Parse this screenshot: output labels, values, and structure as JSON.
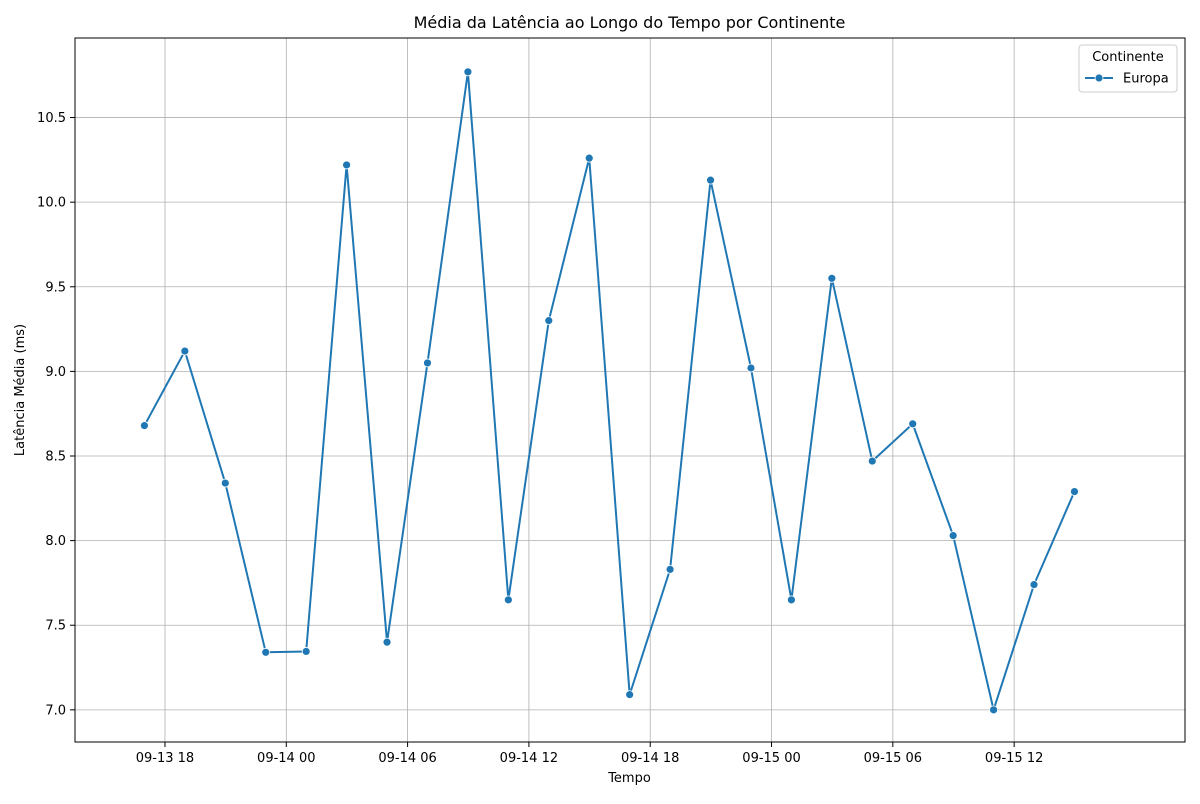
{
  "chart_data": {
    "type": "line",
    "title": "Média da Latência ao Longo do Tempo por Continente",
    "xlabel": "Tempo",
    "ylabel": "Latência Média (ms)",
    "grid": true,
    "legend": {
      "title": "Continente",
      "placement": "top-right"
    },
    "xlim": [
      "2023-09-13 13:33",
      "2023-09-15 20:27"
    ],
    "ylim": [
      6.81,
      10.97
    ],
    "x_ticks": [
      {
        "value": "2023-09-13 18:00",
        "label": "09-13 18"
      },
      {
        "value": "2023-09-14 00:00",
        "label": "09-14 00"
      },
      {
        "value": "2023-09-14 06:00",
        "label": "09-14 06"
      },
      {
        "value": "2023-09-14 12:00",
        "label": "09-14 12"
      },
      {
        "value": "2023-09-14 18:00",
        "label": "09-14 18"
      },
      {
        "value": "2023-09-15 00:00",
        "label": "09-15 00"
      },
      {
        "value": "2023-09-15 06:00",
        "label": "09-15 06"
      },
      {
        "value": "2023-09-15 12:00",
        "label": "09-15 12"
      }
    ],
    "y_ticks": [
      {
        "value": 7.0,
        "label": "7.0"
      },
      {
        "value": 7.5,
        "label": "7.5"
      },
      {
        "value": 8.0,
        "label": "8.0"
      },
      {
        "value": 8.5,
        "label": "8.5"
      },
      {
        "value": 9.0,
        "label": "9.0"
      },
      {
        "value": 9.5,
        "label": "9.5"
      },
      {
        "value": 10.0,
        "label": "10.0"
      },
      {
        "value": 10.5,
        "label": "10.5"
      }
    ],
    "series": [
      {
        "name": "Europa",
        "color": "#1f77b4",
        "x": [
          "2023-09-13 16:59",
          "2023-09-13 18:59",
          "2023-09-13 20:59",
          "2023-09-13 22:59",
          "2023-09-14 00:59",
          "2023-09-14 02:59",
          "2023-09-14 04:59",
          "2023-09-14 06:59",
          "2023-09-14 08:59",
          "2023-09-14 10:59",
          "2023-09-14 12:59",
          "2023-09-14 14:59",
          "2023-09-14 16:59",
          "2023-09-14 18:59",
          "2023-09-14 20:59",
          "2023-09-14 22:59",
          "2023-09-15 00:59",
          "2023-09-15 02:59",
          "2023-09-15 04:59",
          "2023-09-15 06:59",
          "2023-09-15 08:59",
          "2023-09-15 10:59",
          "2023-09-15 12:59",
          "2023-09-15 14:59"
        ],
        "y": [
          8.68,
          9.12,
          8.34,
          7.34,
          7.345,
          10.22,
          7.4,
          9.05,
          10.77,
          7.65,
          9.3,
          10.26,
          7.09,
          7.83,
          10.13,
          9.02,
          7.65,
          9.55,
          8.47,
          8.69,
          8.03,
          7.0,
          7.74,
          8.29
        ]
      }
    ]
  }
}
